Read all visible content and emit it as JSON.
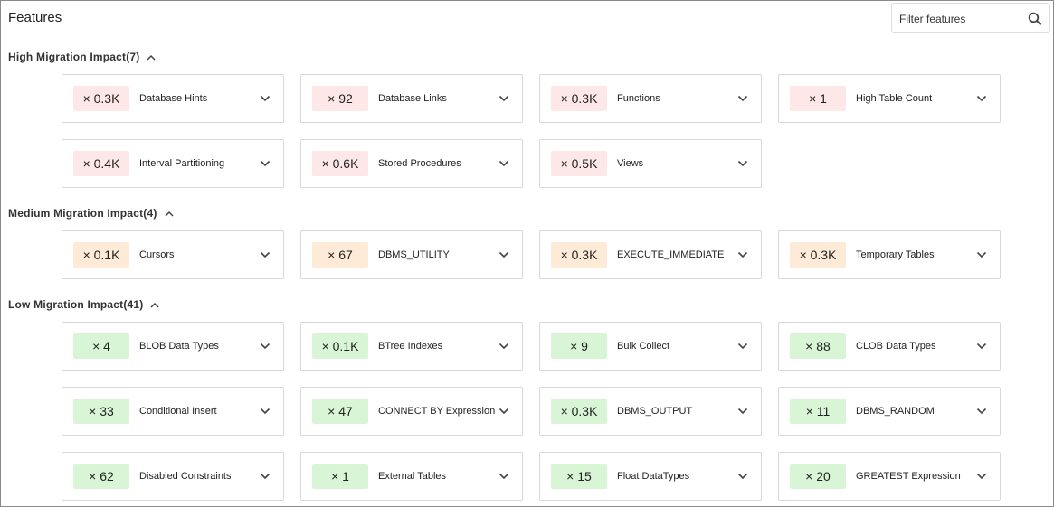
{
  "header": {
    "title": "Features",
    "filter_placeholder": "Filter features"
  },
  "sections": [
    {
      "title": "High Migration Impact(7)",
      "items": [
        {
          "count": "× 0.3K",
          "label": "Database Hints"
        },
        {
          "count": "× 92",
          "label": "Database Links"
        },
        {
          "count": "× 0.3K",
          "label": "Functions"
        },
        {
          "count": "× 1",
          "label": "High Table Count"
        },
        {
          "count": "× 0.4K",
          "label": "Interval Partitioning"
        },
        {
          "count": "× 0.6K",
          "label": "Stored Procedures"
        },
        {
          "count": "× 0.5K",
          "label": "Views"
        }
      ]
    },
    {
      "title": "Medium Migration Impact(4)",
      "items": [
        {
          "count": "× 0.1K",
          "label": "Cursors"
        },
        {
          "count": "× 67",
          "label": "DBMS_UTILITY"
        },
        {
          "count": "× 0.3K",
          "label": "EXECUTE_IMMEDIATE"
        },
        {
          "count": "× 0.3K",
          "label": "Temporary Tables"
        }
      ]
    },
    {
      "title": "Low Migration Impact(41)",
      "items": [
        {
          "count": "× 4",
          "label": "BLOB Data Types"
        },
        {
          "count": "× 0.1K",
          "label": "BTree Indexes"
        },
        {
          "count": "× 9",
          "label": "Bulk Collect"
        },
        {
          "count": "× 88",
          "label": "CLOB Data Types"
        },
        {
          "count": "× 33",
          "label": "Conditional Insert"
        },
        {
          "count": "× 47",
          "label": "CONNECT BY Expression"
        },
        {
          "count": "× 0.3K",
          "label": "DBMS_OUTPUT"
        },
        {
          "count": "× 11",
          "label": "DBMS_RANDOM"
        },
        {
          "count": "× 62",
          "label": "Disabled Constraints"
        },
        {
          "count": "× 1",
          "label": "External Tables"
        },
        {
          "count": "× 15",
          "label": "Float DataTypes"
        },
        {
          "count": "× 20",
          "label": "GREATEST Expression"
        }
      ]
    }
  ]
}
